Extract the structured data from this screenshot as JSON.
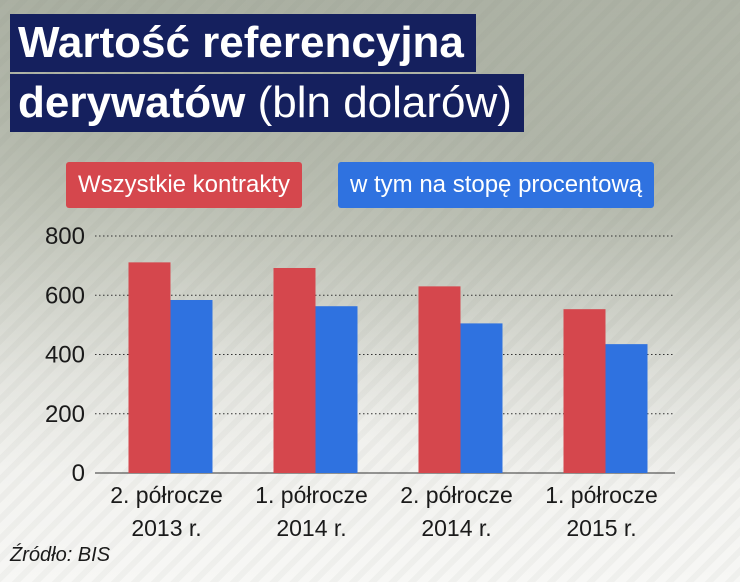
{
  "title": {
    "line1": "Wartość referencyjna",
    "line2_bold": "derywatów",
    "line2_normal": " (bln dolarów)"
  },
  "source": "Źródło: BIS",
  "colors": {
    "title_bg": "#15205e",
    "series_all": "#d5474d",
    "series_interest": "#2f72e0"
  },
  "chart_data": {
    "type": "bar",
    "title": "Wartość referencyjna derywatów (bln dolarów)",
    "categories": [
      [
        "2. półrocze",
        "2013 r."
      ],
      [
        "1. półrocze",
        "2014 r."
      ],
      [
        "2. półrocze",
        "2014 r."
      ],
      [
        "1. półrocze",
        "2015 r."
      ]
    ],
    "series": [
      {
        "name": "Wszystkie kontrakty",
        "values": [
          711,
          692,
          630,
          553
        ]
      },
      {
        "name": "w tym na stopę procentową",
        "values": [
          584,
          563,
          505,
          435
        ]
      }
    ],
    "ylim": [
      0,
      800
    ],
    "yticks": [
      0,
      200,
      400,
      600,
      800
    ],
    "grid": true,
    "legend_position": "top-left"
  }
}
